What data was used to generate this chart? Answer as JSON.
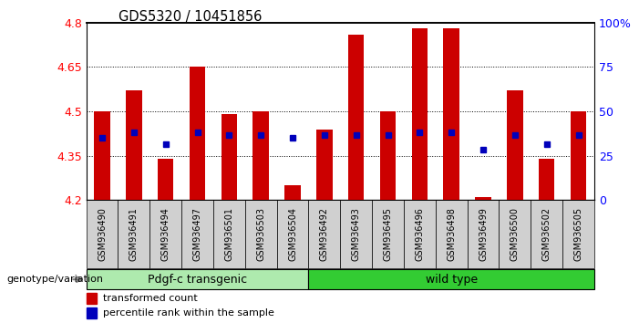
{
  "title": "GDS5320 / 10451856",
  "samples": [
    "GSM936490",
    "GSM936491",
    "GSM936494",
    "GSM936497",
    "GSM936501",
    "GSM936503",
    "GSM936504",
    "GSM936492",
    "GSM936493",
    "GSM936495",
    "GSM936496",
    "GSM936498",
    "GSM936499",
    "GSM936500",
    "GSM936502",
    "GSM936505"
  ],
  "bar_heights": [
    4.5,
    4.57,
    4.34,
    4.65,
    4.49,
    4.5,
    4.25,
    4.44,
    4.76,
    4.5,
    4.78,
    4.78,
    4.21,
    4.57,
    4.34,
    4.5
  ],
  "blue_positions": [
    4.41,
    4.43,
    4.39,
    4.43,
    4.42,
    4.42,
    4.41,
    4.42,
    4.42,
    4.42,
    4.43,
    4.43,
    4.37,
    4.42,
    4.39,
    4.42
  ],
  "groups": [
    {
      "label": "Pdgf-c transgenic",
      "start": 0,
      "end": 7,
      "color": "#AEEAAE"
    },
    {
      "label": "wild type",
      "start": 7,
      "end": 16,
      "color": "#33CC33"
    }
  ],
  "group_label": "genotype/variation",
  "y_min": 4.2,
  "y_max": 4.8,
  "y_ticks": [
    4.2,
    4.35,
    4.5,
    4.65,
    4.8
  ],
  "y_tick_labels": [
    "4.2",
    "4.35",
    "4.5",
    "4.65",
    "4.8"
  ],
  "y2_ticks": [
    0,
    25,
    50,
    75,
    100
  ],
  "y2_tick_labels": [
    "0",
    "25",
    "50",
    "75",
    "100%"
  ],
  "bar_color": "#CC0000",
  "blue_color": "#0000BB",
  "bg_color": "#FFFFFF",
  "legend_red_label": "transformed count",
  "legend_blue_label": "percentile rank within the sample",
  "tick_bg_color": "#D0D0D0"
}
